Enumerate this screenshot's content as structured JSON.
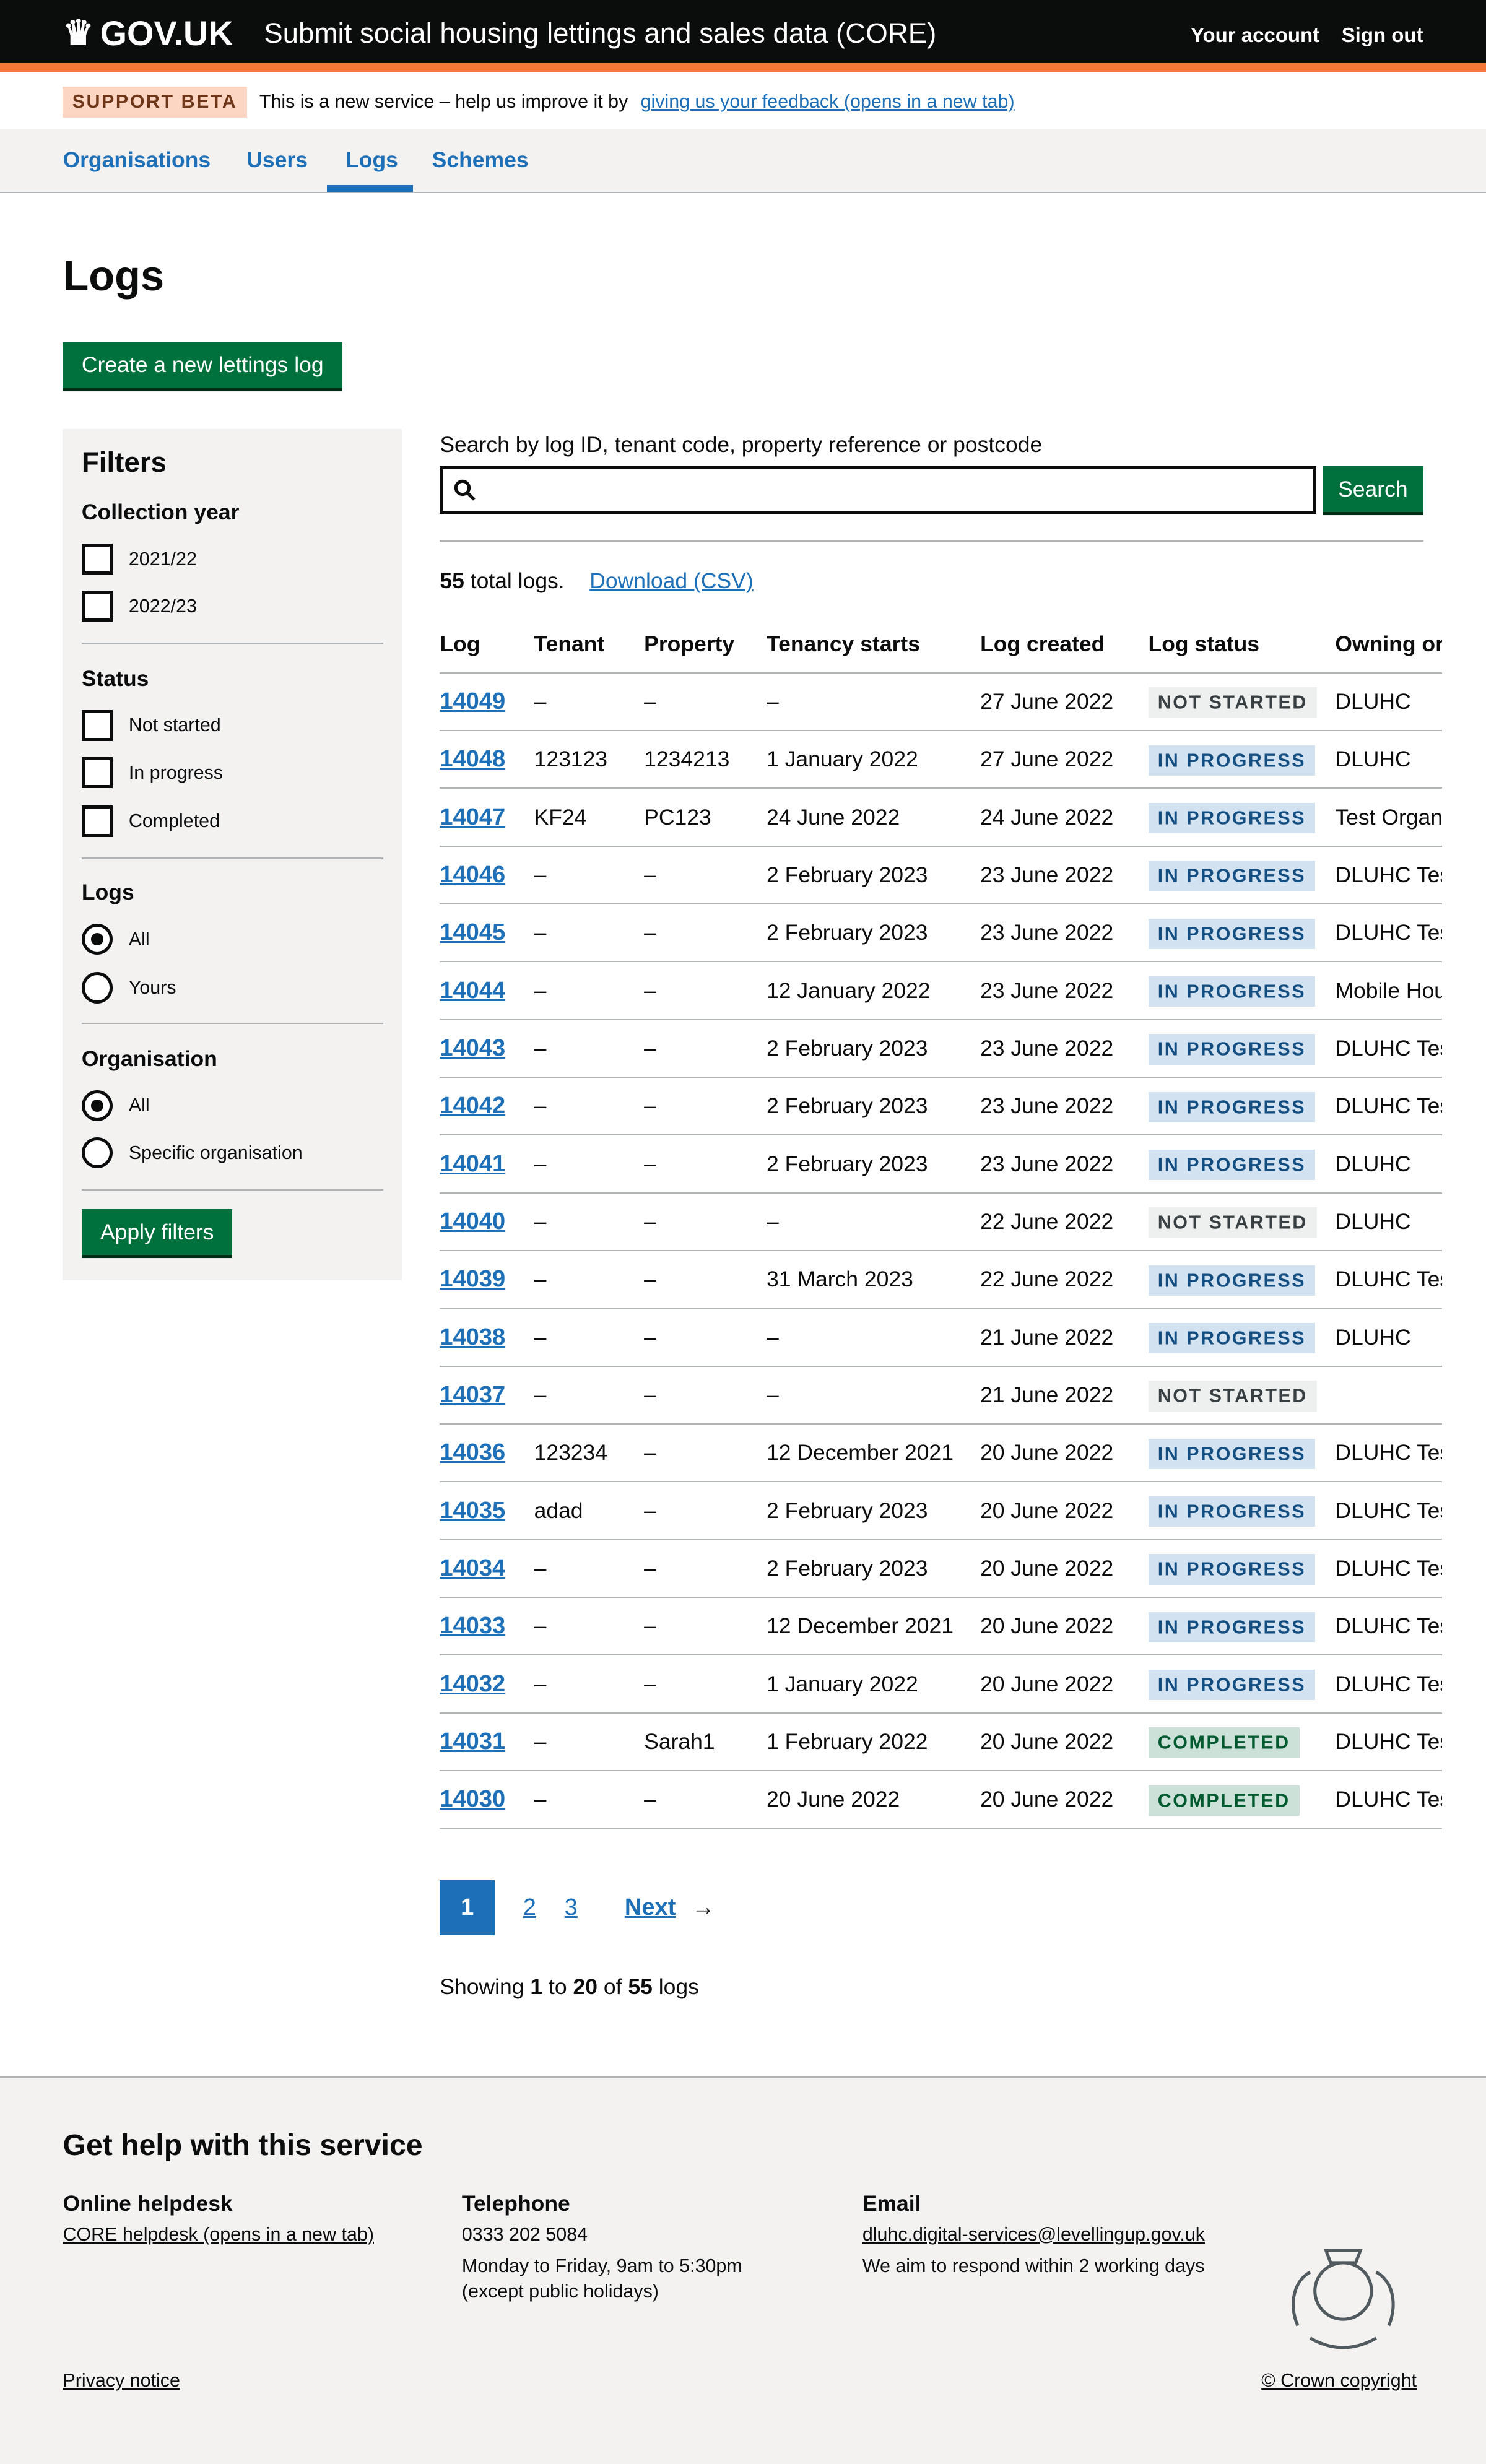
{
  "header": {
    "logo": "GOV.UK",
    "service": "Submit social housing lettings and sales data (CORE)",
    "links": [
      "Your account",
      "Sign out"
    ]
  },
  "banner": {
    "tag": "SUPPORT BETA",
    "text": "This is a new service – help us improve it by",
    "link": "giving us your feedback (opens in a new tab)"
  },
  "nav": {
    "items": [
      "Organisations",
      "Users",
      "Logs",
      "Schemes"
    ],
    "active": "Logs"
  },
  "page": {
    "title": "Logs",
    "create_button": "Create a new lettings log"
  },
  "filters": {
    "title": "Filters",
    "collection_year": {
      "label": "Collection year",
      "options": [
        "2021/22",
        "2022/23"
      ]
    },
    "status": {
      "label": "Status",
      "options": [
        "Not started",
        "In progress",
        "Completed"
      ]
    },
    "logs": {
      "label": "Logs",
      "options": [
        "All",
        "Yours"
      ],
      "selected": "All"
    },
    "organisation": {
      "label": "Organisation",
      "options": [
        "All",
        "Specific organisation"
      ],
      "selected": "All"
    },
    "apply": "Apply filters"
  },
  "search": {
    "label": "Search by log ID, tenant code, property reference or postcode",
    "value": "",
    "button": "Search"
  },
  "summary": {
    "count": "55",
    "suffix": " total logs.",
    "download": "Download (CSV)"
  },
  "table": {
    "headers": [
      "Log",
      "Tenant",
      "Property",
      "Tenancy starts",
      "Log created",
      "Log status",
      "Owning or"
    ],
    "rows": [
      [
        "14049",
        "–",
        "–",
        "–",
        "27 June 2022",
        "NOT STARTED",
        "DLUHC"
      ],
      [
        "14048",
        "123123",
        "1234213",
        "1 January 2022",
        "27 June 2022",
        "IN PROGRESS",
        "DLUHC"
      ],
      [
        "14047",
        "KF24",
        "PC123",
        "24 June 2022",
        "24 June 2022",
        "IN PROGRESS",
        "Test Organ"
      ],
      [
        "14046",
        "–",
        "–",
        "2 February 2023",
        "23 June 2022",
        "IN PROGRESS",
        "DLUHC Tes"
      ],
      [
        "14045",
        "–",
        "–",
        "2 February 2023",
        "23 June 2022",
        "IN PROGRESS",
        "DLUHC Tes"
      ],
      [
        "14044",
        "–",
        "–",
        "12 January 2022",
        "23 June 2022",
        "IN PROGRESS",
        "Mobile Hou"
      ],
      [
        "14043",
        "–",
        "–",
        "2 February 2023",
        "23 June 2022",
        "IN PROGRESS",
        "DLUHC Tes"
      ],
      [
        "14042",
        "–",
        "–",
        "2 February 2023",
        "23 June 2022",
        "IN PROGRESS",
        "DLUHC Tes"
      ],
      [
        "14041",
        "–",
        "–",
        "2 February 2023",
        "23 June 2022",
        "IN PROGRESS",
        "DLUHC"
      ],
      [
        "14040",
        "–",
        "–",
        "–",
        "22 June 2022",
        "NOT STARTED",
        "DLUHC"
      ],
      [
        "14039",
        "–",
        "–",
        "31 March 2023",
        "22 June 2022",
        "IN PROGRESS",
        "DLUHC Tes"
      ],
      [
        "14038",
        "–",
        "–",
        "–",
        "21 June 2022",
        "IN PROGRESS",
        "DLUHC"
      ],
      [
        "14037",
        "–",
        "–",
        "–",
        "21 June 2022",
        "NOT STARTED",
        ""
      ],
      [
        "14036",
        "123234",
        "–",
        "12 December 2021",
        "20 June 2022",
        "IN PROGRESS",
        "DLUHC Tes"
      ],
      [
        "14035",
        "adad",
        "–",
        "2 February 2023",
        "20 June 2022",
        "IN PROGRESS",
        "DLUHC Tes"
      ],
      [
        "14034",
        "–",
        "–",
        "2 February 2023",
        "20 June 2022",
        "IN PROGRESS",
        "DLUHC Tes"
      ],
      [
        "14033",
        "–",
        "–",
        "12 December 2021",
        "20 June 2022",
        "IN PROGRESS",
        "DLUHC Tes"
      ],
      [
        "14032",
        "–",
        "–",
        "1 January 2022",
        "20 June 2022",
        "IN PROGRESS",
        "DLUHC Tes"
      ],
      [
        "14031",
        "–",
        "Sarah1",
        "1 February 2022",
        "20 June 2022",
        "COMPLETED",
        "DLUHC Tes"
      ],
      [
        "14030",
        "–",
        "–",
        "20 June 2022",
        "20 June 2022",
        "COMPLETED",
        "DLUHC Tes"
      ]
    ]
  },
  "pagination": {
    "current": "1",
    "pages": [
      "2",
      "3"
    ],
    "next": "Next"
  },
  "showing": {
    "pre": "Showing ",
    "from": "1",
    "to_word": " to ",
    "to": "20",
    "of_word": " of ",
    "total": "55",
    "post": " logs"
  },
  "footer": {
    "title": "Get help with this service",
    "helpdesk": {
      "title": "Online helpdesk",
      "link": "CORE helpdesk (opens in a new tab)"
    },
    "telephone": {
      "title": "Telephone",
      "number": "0333 202 5084",
      "hours": "Monday to Friday, 9am to 5:30pm",
      "note": "(except public holidays)"
    },
    "email": {
      "title": "Email",
      "address": "dluhc.digital-services@levellingup.gov.uk",
      "note": "We aim to respond within 2 working days"
    },
    "privacy": "Privacy notice",
    "copyright": "© Crown copyright"
  },
  "colors": {
    "brand": "#0b0c0c",
    "accent": "#f47738",
    "link": "#1d70b8",
    "button": "#00703c"
  }
}
